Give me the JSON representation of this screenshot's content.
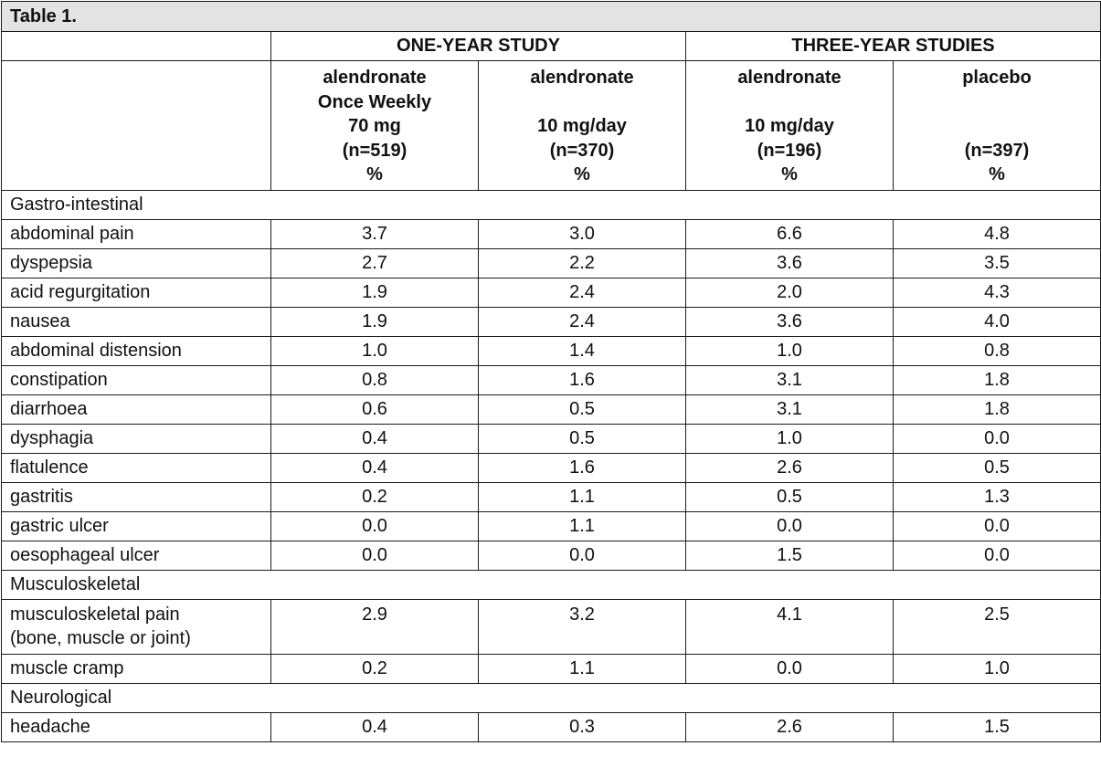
{
  "table": {
    "title": "Table 1.",
    "groups": [
      "ONE-YEAR STUDY",
      "THREE-YEAR STUDIES"
    ],
    "columns": [
      [
        "alendronate",
        "Once Weekly",
        "70 mg",
        "(n=519)",
        "%"
      ],
      [
        "alendronate",
        "",
        "10 mg/day",
        "(n=370)",
        "%"
      ],
      [
        "alendronate",
        "",
        "10 mg/day",
        "(n=196)",
        "%"
      ],
      [
        "placebo",
        "",
        "",
        "(n=397)",
        "%"
      ]
    ],
    "sections": [
      {
        "name": "Gastro-intestinal",
        "rows": [
          {
            "label": [
              "abdominal pain"
            ],
            "values": [
              "3.7",
              "3.0",
              "6.6",
              "4.8"
            ]
          },
          {
            "label": [
              "dyspepsia"
            ],
            "values": [
              "2.7",
              "2.2",
              "3.6",
              "3.5"
            ]
          },
          {
            "label": [
              "acid regurgitation"
            ],
            "values": [
              "1.9",
              "2.4",
              "2.0",
              "4.3"
            ]
          },
          {
            "label": [
              "nausea"
            ],
            "values": [
              "1.9",
              "2.4",
              "3.6",
              "4.0"
            ]
          },
          {
            "label": [
              "abdominal distension"
            ],
            "values": [
              "1.0",
              "1.4",
              "1.0",
              "0.8"
            ]
          },
          {
            "label": [
              "constipation"
            ],
            "values": [
              "0.8",
              "1.6",
              "3.1",
              "1.8"
            ]
          },
          {
            "label": [
              "diarrhoea"
            ],
            "values": [
              "0.6",
              "0.5",
              "3.1",
              "1.8"
            ]
          },
          {
            "label": [
              "dysphagia"
            ],
            "values": [
              "0.4",
              "0.5",
              "1.0",
              "0.0"
            ]
          },
          {
            "label": [
              "flatulence"
            ],
            "values": [
              "0.4",
              "1.6",
              "2.6",
              "0.5"
            ]
          },
          {
            "label": [
              "gastritis"
            ],
            "values": [
              "0.2",
              "1.1",
              "0.5",
              "1.3"
            ]
          },
          {
            "label": [
              "gastric ulcer"
            ],
            "values": [
              "0.0",
              "1.1",
              "0.0",
              "0.0"
            ]
          },
          {
            "label": [
              "oesophageal ulcer"
            ],
            "values": [
              "0.0",
              "0.0",
              "1.5",
              "0.0"
            ]
          }
        ]
      },
      {
        "name": "Musculoskeletal",
        "rows": [
          {
            "label": [
              "musculoskeletal pain",
              "(bone, muscle or joint)"
            ],
            "values": [
              "2.9",
              "3.2",
              "4.1",
              "2.5"
            ]
          },
          {
            "label": [
              "muscle cramp"
            ],
            "values": [
              "0.2",
              "1.1",
              "0.0",
              "1.0"
            ]
          }
        ]
      },
      {
        "name": "Neurological",
        "rows": [
          {
            "label": [
              "headache"
            ],
            "values": [
              "0.4",
              "0.3",
              "2.6",
              "1.5"
            ]
          }
        ]
      }
    ]
  }
}
